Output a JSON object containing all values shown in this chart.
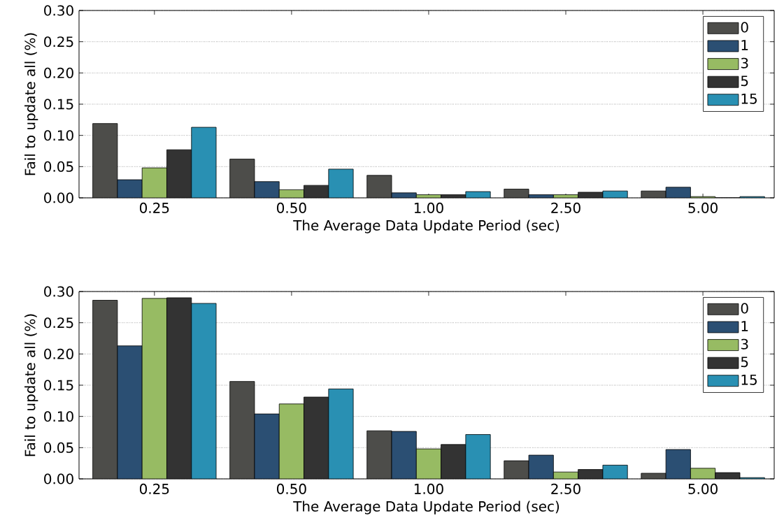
{
  "chart_data": [
    {
      "type": "bar",
      "xlabel": "The Average Data Update Period (sec)",
      "ylabel": "Fail to update all (%)",
      "categories": [
        "0.25",
        "0.50",
        "1.00",
        "2.50",
        "5.00"
      ],
      "series": [
        {
          "name": "0",
          "color": "#4d4d4a",
          "values": [
            0.119,
            0.062,
            0.036,
            0.014,
            0.011
          ]
        },
        {
          "name": "1",
          "color": "#2b4f73",
          "values": [
            0.029,
            0.026,
            0.008,
            0.005,
            0.017
          ]
        },
        {
          "name": "3",
          "color": "#97bb63",
          "values": [
            0.048,
            0.013,
            0.005,
            0.005,
            0.002
          ]
        },
        {
          "name": "5",
          "color": "#333333",
          "values": [
            0.077,
            0.02,
            0.005,
            0.009,
            0.0
          ]
        },
        {
          "name": "15",
          "color": "#2990b3",
          "values": [
            0.113,
            0.046,
            0.01,
            0.011,
            0.002
          ]
        }
      ],
      "ylim": [
        0,
        0.3
      ],
      "yticks": [
        {
          "value": 0,
          "label": "0.00"
        },
        {
          "value": 0.05,
          "label": "0.05"
        },
        {
          "value": 0.1,
          "label": "0.10"
        },
        {
          "value": 0.15,
          "label": "0.15"
        },
        {
          "value": 0.2,
          "label": "0.20"
        },
        {
          "value": 0.25,
          "label": "0.25"
        },
        {
          "value": 0.3,
          "label": "0.30"
        }
      ],
      "grid": "y",
      "legend": "top right"
    },
    {
      "type": "bar",
      "xlabel": "The Average Data Update Period (sec)",
      "ylabel": "Fail to update all (%)",
      "categories": [
        "0.25",
        "0.50",
        "1.00",
        "2.50",
        "5.00"
      ],
      "series": [
        {
          "name": "0",
          "color": "#4d4d4a",
          "values": [
            0.286,
            0.156,
            0.077,
            0.029,
            0.009
          ]
        },
        {
          "name": "1",
          "color": "#2b4f73",
          "values": [
            0.213,
            0.104,
            0.076,
            0.038,
            0.047
          ]
        },
        {
          "name": "3",
          "color": "#97bb63",
          "values": [
            0.289,
            0.12,
            0.048,
            0.011,
            0.017
          ]
        },
        {
          "name": "5",
          "color": "#333333",
          "values": [
            0.29,
            0.131,
            0.055,
            0.015,
            0.01
          ]
        },
        {
          "name": "15",
          "color": "#2990b3",
          "values": [
            0.281,
            0.144,
            0.071,
            0.022,
            0.002
          ]
        }
      ],
      "ylim": [
        0,
        0.3
      ],
      "yticks": [
        {
          "value": 0,
          "label": "0.00"
        },
        {
          "value": 0.05,
          "label": "0.05"
        },
        {
          "value": 0.1,
          "label": "0.10"
        },
        {
          "value": 0.15,
          "label": "0.15"
        },
        {
          "value": 0.2,
          "label": "0.20"
        },
        {
          "value": 0.25,
          "label": "0.25"
        },
        {
          "value": 0.3,
          "label": "0.30"
        }
      ],
      "grid": "y",
      "legend": "top right"
    }
  ]
}
